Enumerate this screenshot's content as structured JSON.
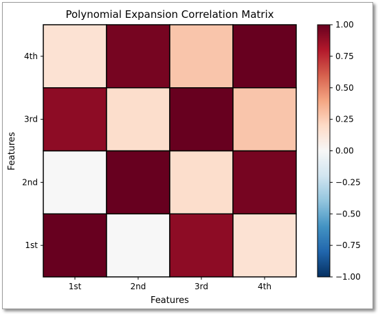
{
  "chart_data": {
    "type": "heatmap",
    "title": "Polynomial Expansion Correlation Matrix",
    "xlabel": "Features",
    "ylabel": "Features",
    "x_categories": [
      "1st",
      "2nd",
      "3rd",
      "4th"
    ],
    "y_categories": [
      "1st",
      "2nd",
      "3rd",
      "4th"
    ],
    "matrix": [
      [
        1.0,
        0.0,
        0.9,
        0.15
      ],
      [
        0.0,
        1.0,
        0.18,
        0.96
      ],
      [
        0.9,
        0.18,
        1.0,
        0.28
      ],
      [
        0.15,
        0.96,
        0.28,
        1.0
      ]
    ],
    "vmin": -1.0,
    "vmax": 1.0,
    "colormap": "RdBu_r",
    "colorbar": {
      "ticks": [
        1.0,
        0.75,
        0.5,
        0.25,
        0.0,
        -0.25,
        -0.5,
        -0.75,
        -1.0
      ],
      "tick_labels": [
        "1.00",
        "0.75",
        "0.50",
        "0.25",
        "0.00",
        "−0.25",
        "−0.50",
        "−0.75",
        "−1.00"
      ]
    },
    "grid": false
  }
}
